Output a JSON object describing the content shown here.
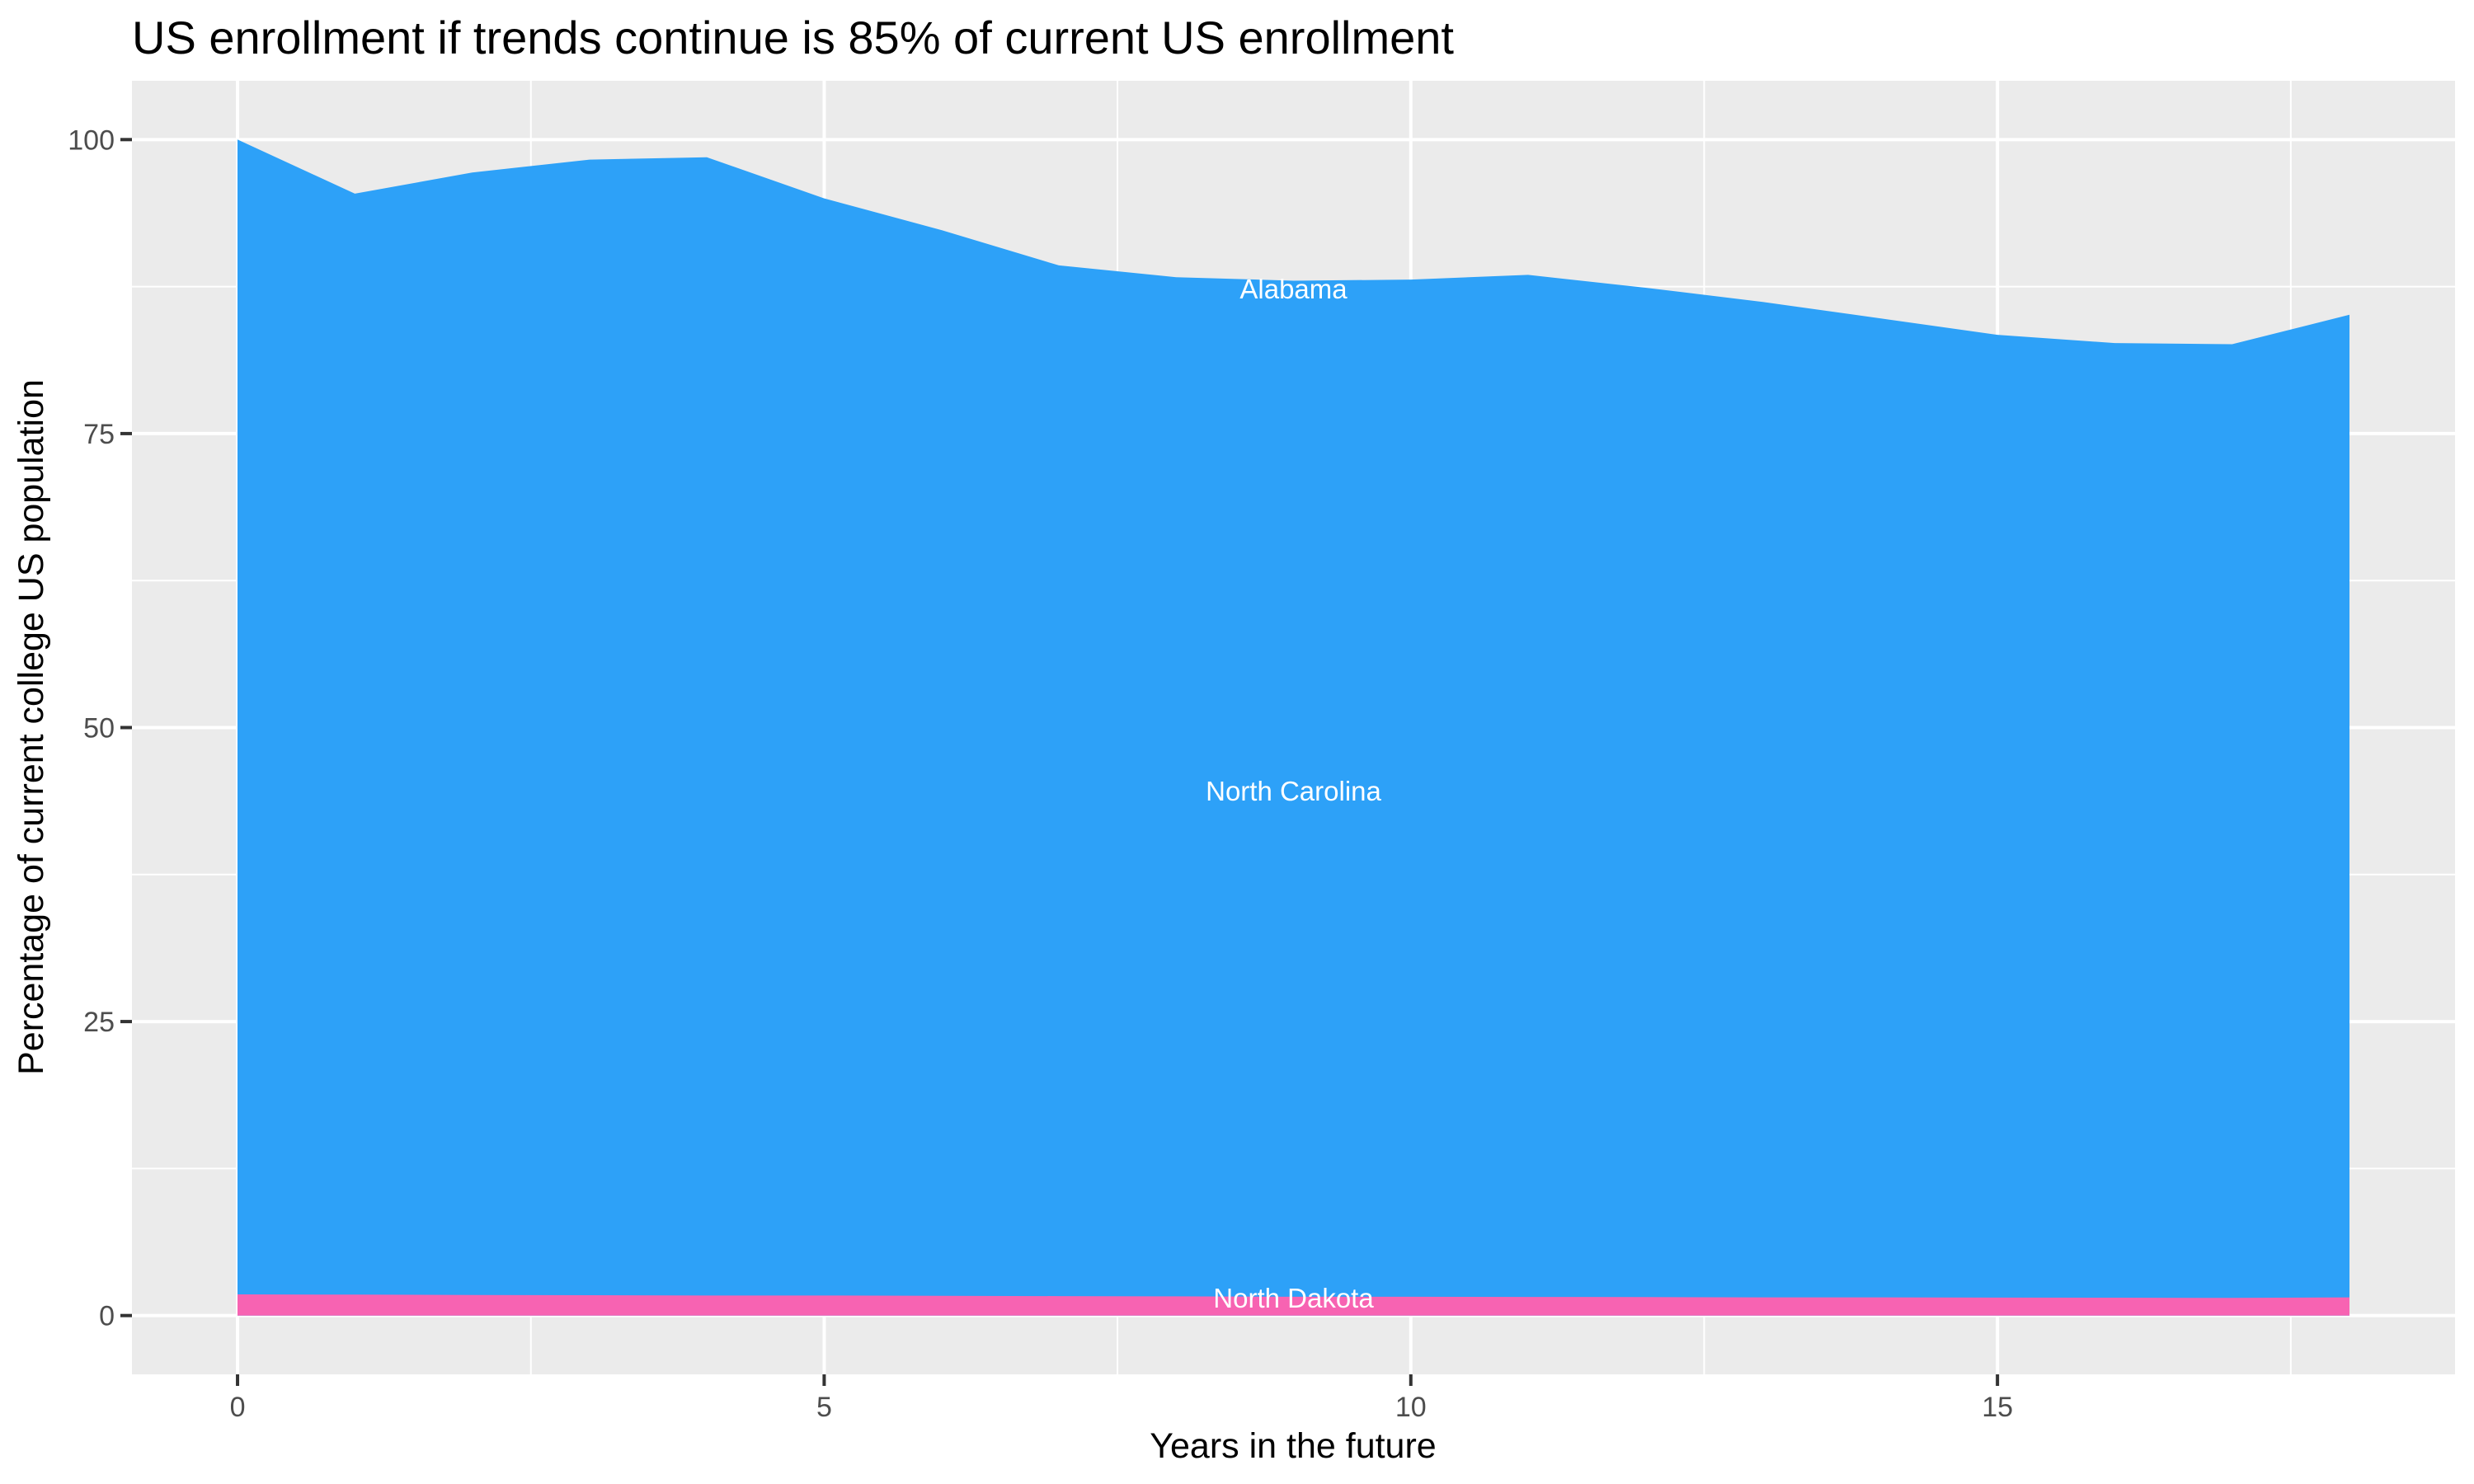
{
  "chart_data": {
    "type": "area",
    "stacked": true,
    "title": "US enrollment if trends continue is 85% of current US enrollment",
    "xlabel": "Years in the future",
    "ylabel": "Percentage of current college US population",
    "x": [
      0,
      1,
      2,
      3,
      4,
      5,
      6,
      7,
      8,
      9,
      10,
      11,
      12,
      13,
      14,
      15,
      16,
      17,
      18
    ],
    "series": [
      {
        "name": "All states stacked (blue band, labeled Alabama / North Carolina)",
        "color": "#2DA1F8",
        "baseline": 0,
        "values": [
          100,
          95.4,
          97.2,
          98.3,
          98.5,
          95.0,
          92.3,
          89.3,
          88.3,
          88.0,
          88.1,
          88.5,
          87.4,
          86.2,
          84.8,
          83.4,
          82.7,
          82.6,
          85.1
        ]
      },
      {
        "name": "North Dakota (highlighted pink band)",
        "color": "#F763B2",
        "baseline": 0,
        "values": [
          1.8,
          1.78,
          1.75,
          1.73,
          1.7,
          1.7,
          1.68,
          1.65,
          1.63,
          1.6,
          1.6,
          1.58,
          1.57,
          1.55,
          1.55,
          1.53,
          1.52,
          1.5,
          1.55
        ]
      }
    ],
    "area_labels": [
      {
        "text": "Alabama",
        "x": 9,
        "y": 87.3,
        "color": "#FFFFFF"
      },
      {
        "text": "North Carolina",
        "x": 9,
        "y": 44.6,
        "color": "#FFFFFF"
      },
      {
        "text": "North Dakota",
        "x": 9,
        "y": 1.5,
        "color": "#FFFFFF"
      }
    ],
    "xticks": [
      0,
      5,
      10,
      15
    ],
    "yticks": [
      0,
      25,
      50,
      75,
      100
    ],
    "xlim": [
      -0.9,
      18.9
    ],
    "ylim": [
      -5,
      105
    ],
    "grid": {
      "major": true,
      "minor": true
    },
    "legend": "none",
    "theme": {
      "background": "#FFFFFF",
      "panel_bg": "#EBEBEB",
      "grid_color": "#FFFFFF",
      "tick_color": "#333333",
      "tick_label_color": "#4D4D4D",
      "title_color": "#000000"
    }
  }
}
